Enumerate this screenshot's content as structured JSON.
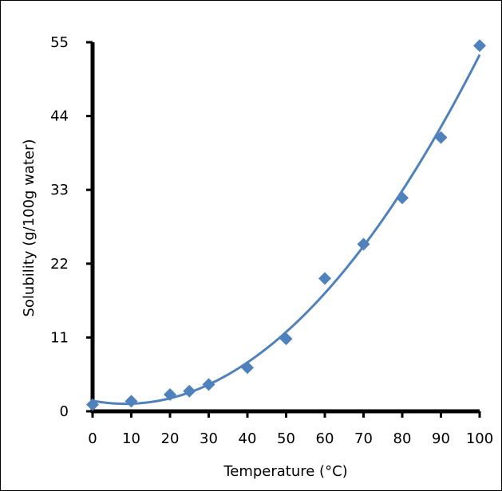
{
  "chart_data": {
    "type": "scatter",
    "title": "",
    "xlabel": "Temperature (°C)",
    "ylabel": "Solubility (g/100g water)",
    "xlim": [
      0,
      100
    ],
    "ylim": [
      0,
      55
    ],
    "xticks": [
      0,
      10,
      20,
      30,
      40,
      50,
      60,
      70,
      80,
      90,
      100
    ],
    "yticks": [
      0,
      11,
      22,
      33,
      44,
      55
    ],
    "grid": false,
    "legend": "none",
    "marker_color": "#4F81BD",
    "trendline": {
      "type": "polynomial",
      "color": "#4F81BD"
    },
    "series": [
      {
        "x": [
          0,
          10,
          20,
          25,
          30,
          40,
          50,
          60,
          70,
          80,
          90,
          100
        ],
        "y": [
          1.0,
          1.5,
          2.5,
          3.0,
          4.0,
          6.5,
          10.8,
          19.8,
          24.9,
          31.8,
          40.8,
          54.5
        ]
      }
    ]
  }
}
